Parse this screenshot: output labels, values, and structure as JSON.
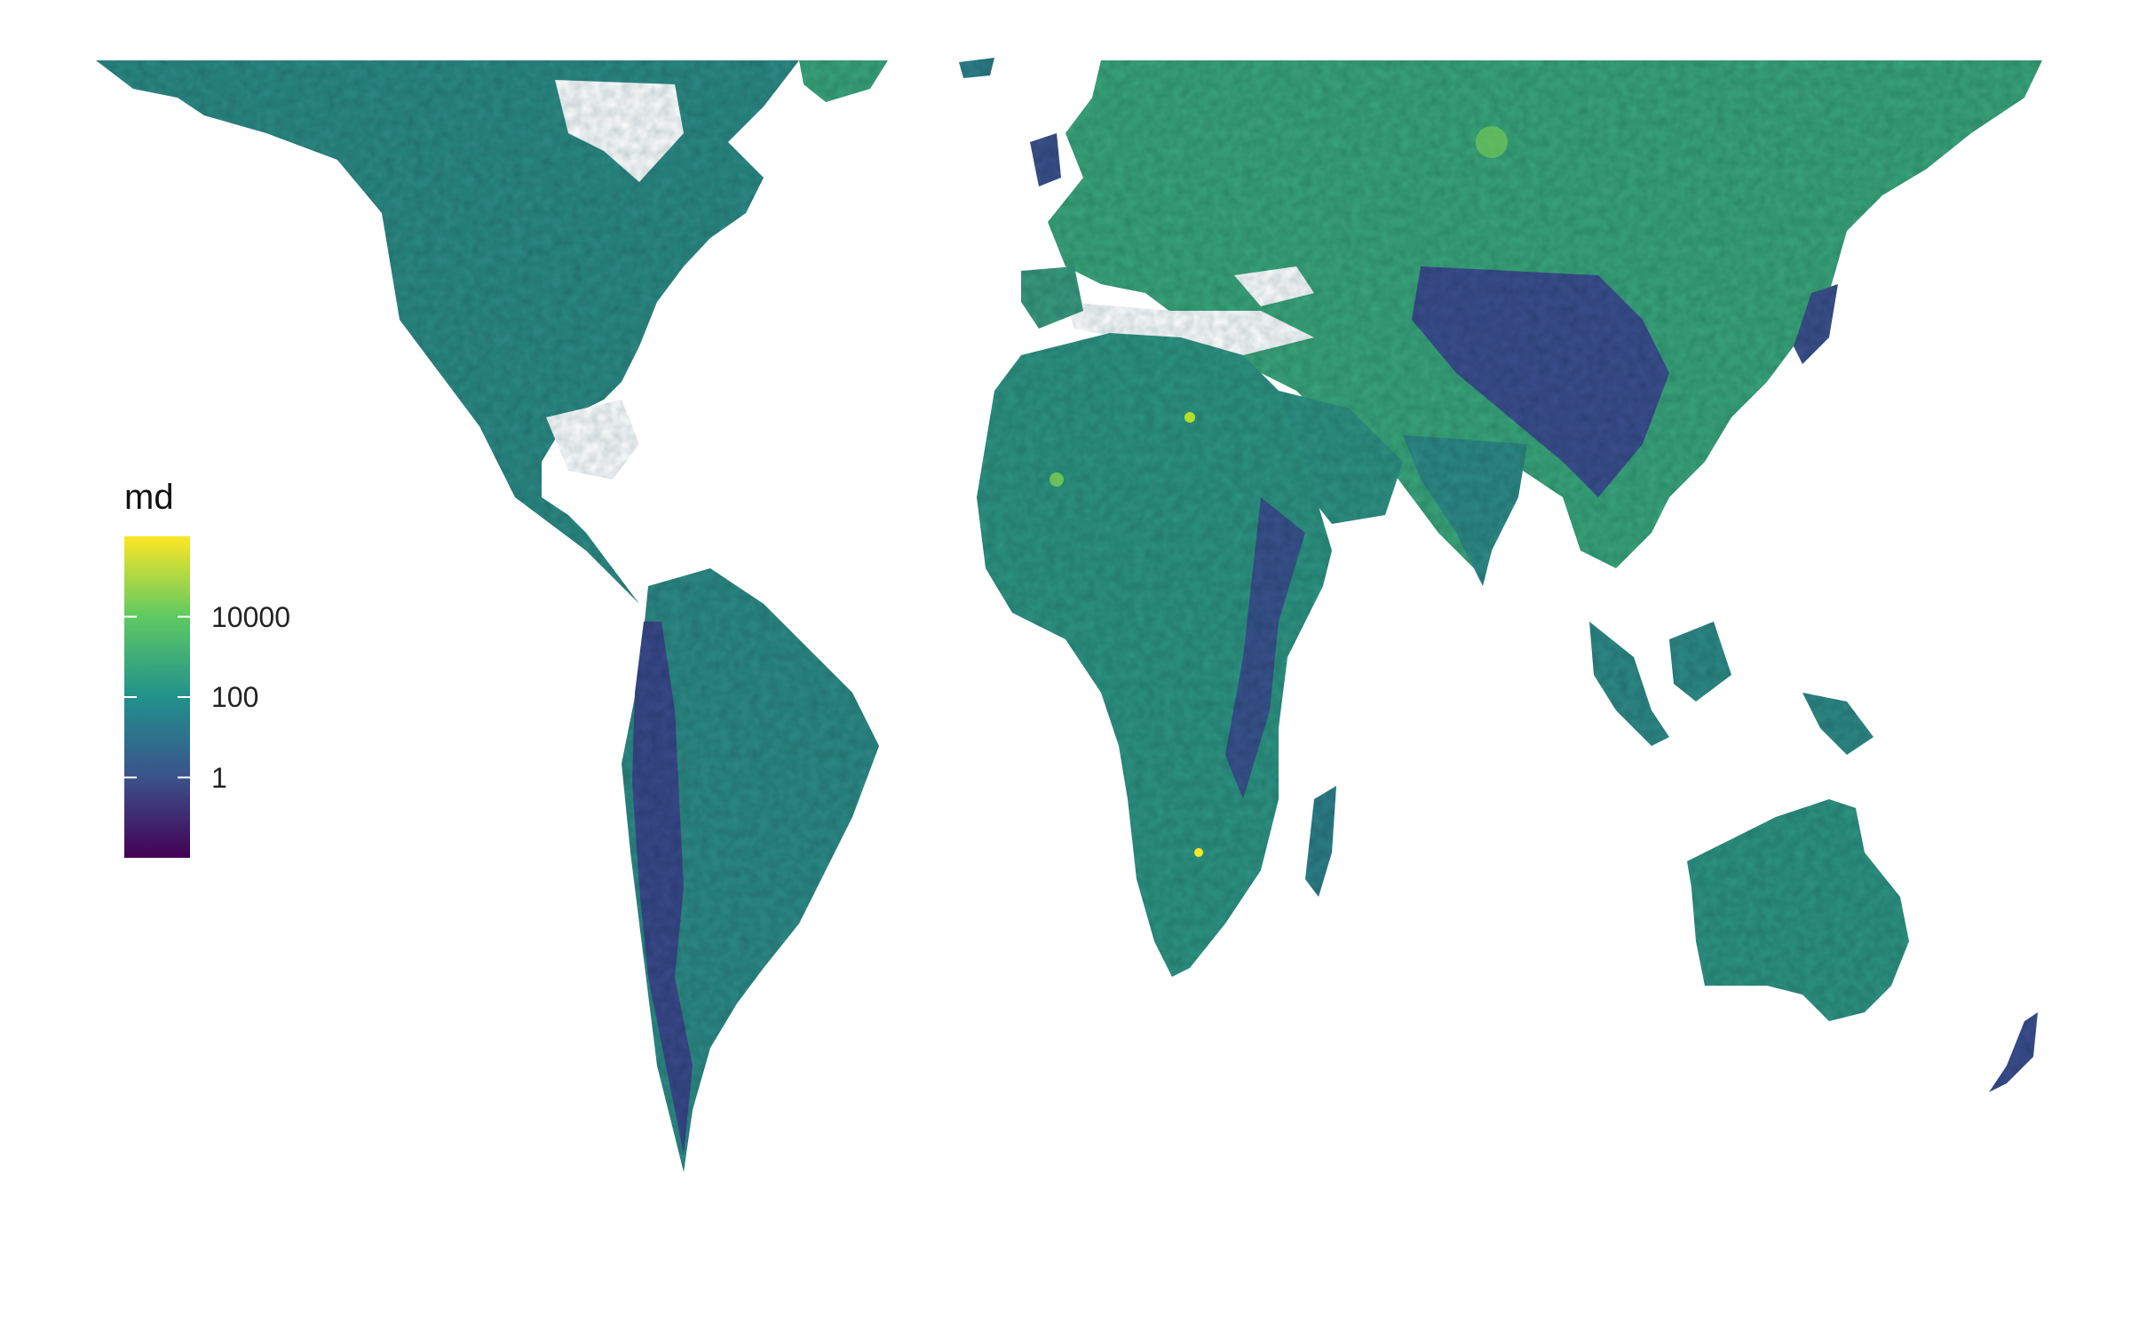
{
  "legend": {
    "title": "md",
    "ticks": [
      {
        "label": "10000",
        "value": 10000
      },
      {
        "label": "100",
        "value": 100
      },
      {
        "label": "1",
        "value": 1
      }
    ],
    "scale": "log10",
    "range": [
      0.01,
      1000000
    ],
    "colors": [
      "#440154",
      "#3b528b",
      "#21918c",
      "#5ec962",
      "#fde725"
    ]
  },
  "map": {
    "projection": "world-raster",
    "fill_palette": "viridis",
    "background": "#ffffff"
  }
}
